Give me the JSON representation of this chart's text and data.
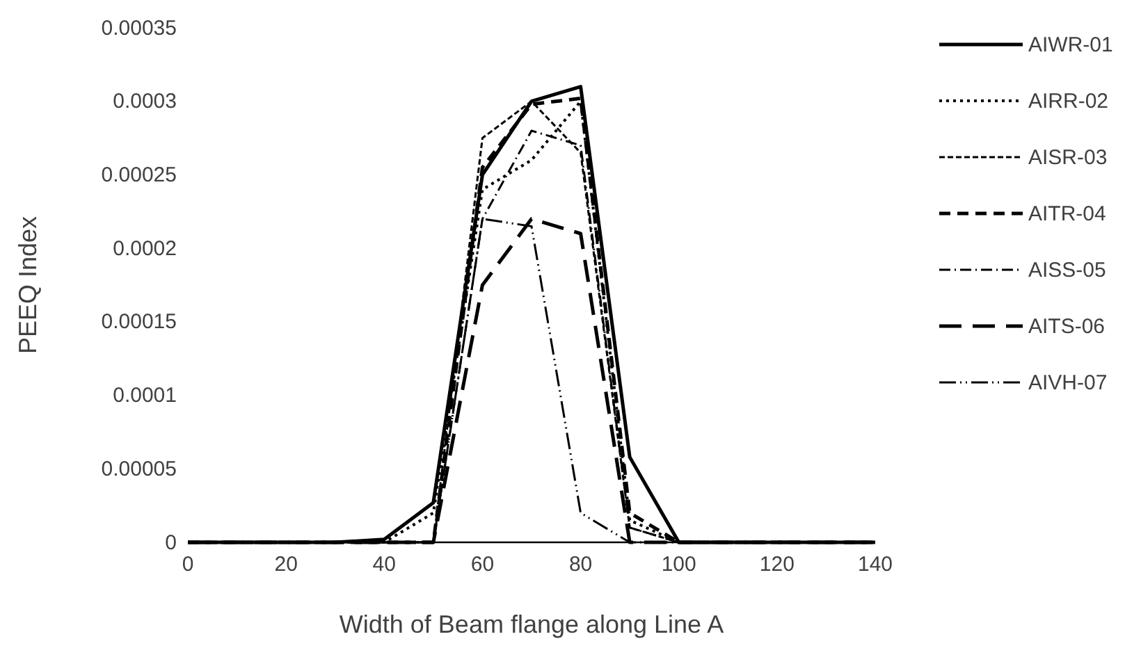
{
  "chart_data": {
    "type": "line",
    "xlabel": "Width of Beam flange along Line A",
    "ylabel": "PEEQ Index",
    "x": [
      0,
      10,
      20,
      30,
      40,
      50,
      60,
      70,
      80,
      90,
      100,
      110,
      120,
      130,
      140
    ],
    "xlim": [
      0,
      140
    ],
    "xticks": [
      0,
      20,
      40,
      60,
      80,
      100,
      120,
      140
    ],
    "ylim": [
      0,
      0.00035
    ],
    "yticks": [
      0,
      {
        "value": 5e-05,
        "label": "0.00005"
      },
      0.0001,
      0.00015,
      0.0002,
      0.00025,
      0.0003,
      0.00035
    ],
    "grid": false,
    "legend": "right",
    "marker": "none",
    "series": [
      {
        "name": "AIWR-01",
        "color": "#000000",
        "line_style": "solid",
        "values": [
          0,
          0,
          0,
          0,
          2e-06,
          2.7e-05,
          0.00025,
          0.0003,
          0.00031,
          5.8e-05,
          0,
          0,
          0,
          0,
          0
        ]
      },
      {
        "name": "AIRR-02",
        "color": "#000000",
        "line_style": "dotted",
        "values": [
          0,
          0,
          0,
          0,
          0,
          2e-05,
          0.00024,
          0.00026,
          0.0003,
          1.5e-05,
          0,
          0,
          0,
          0,
          0
        ]
      },
      {
        "name": "AISR-03",
        "color": "#000000",
        "line_style": "dashed",
        "values": [
          0,
          0,
          0,
          0,
          0,
          0,
          0.000275,
          0.0003,
          0.000265,
          1e-05,
          0,
          0,
          0,
          0,
          0
        ]
      },
      {
        "name": "AITR-04",
        "color": "#000000",
        "line_style": "dashed",
        "values": [
          0,
          0,
          0,
          0,
          0,
          0,
          0.000255,
          0.000298,
          0.000302,
          2e-05,
          0,
          0,
          0,
          0,
          0
        ]
      },
      {
        "name": "AISS-05",
        "color": "#000000",
        "line_style": "dashdot",
        "values": [
          0,
          0,
          0,
          0,
          0,
          0,
          0.00022,
          0.00028,
          0.00027,
          1e-05,
          0,
          0,
          0,
          0,
          0
        ]
      },
      {
        "name": "AITS-06",
        "color": "#000000",
        "line_style": "longdash",
        "values": [
          0,
          0,
          0,
          0,
          0,
          0,
          0.000175,
          0.00022,
          0.00021,
          0,
          0,
          0,
          0,
          0,
          0
        ]
      },
      {
        "name": "AIVH-07",
        "color": "#000000",
        "line_style": "dashdotdot",
        "values": [
          0,
          0,
          0,
          0,
          0,
          0,
          0.00022,
          0.000215,
          2e-05,
          0,
          0,
          0,
          0,
          0,
          0
        ]
      }
    ]
  }
}
